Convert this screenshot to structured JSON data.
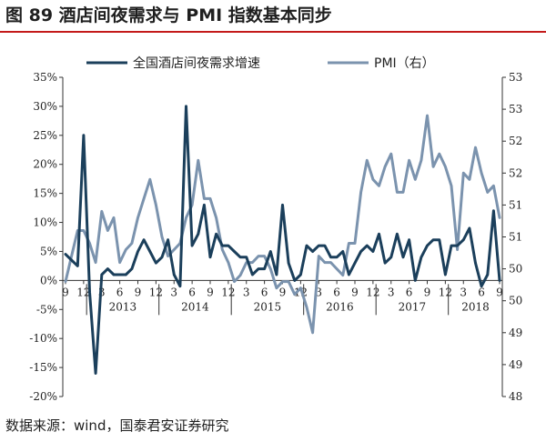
{
  "title": "图 89  酒店间夜需求与 PMI 指数基本同步",
  "source": "数据来源：wind，国泰君安证券研究",
  "chart_data": {
    "type": "line",
    "x": [
      "2012-09",
      "2012-10",
      "2012-11",
      "2012-12",
      "2013-01",
      "2013-02",
      "2013-03",
      "2013-04",
      "2013-05",
      "2013-06",
      "2013-07",
      "2013-08",
      "2013-09",
      "2013-10",
      "2013-11",
      "2013-12",
      "2014-01",
      "2014-02",
      "2014-03",
      "2014-04",
      "2014-05",
      "2014-06",
      "2014-07",
      "2014-08",
      "2014-09",
      "2014-10",
      "2014-11",
      "2014-12",
      "2015-01",
      "2015-02",
      "2015-03",
      "2015-04",
      "2015-05",
      "2015-06",
      "2015-07",
      "2015-08",
      "2015-09",
      "2015-10",
      "2015-11",
      "2015-12",
      "2016-01",
      "2016-02",
      "2016-03",
      "2016-04",
      "2016-05",
      "2016-06",
      "2016-07",
      "2016-08",
      "2016-09",
      "2016-10",
      "2016-11",
      "2016-12",
      "2017-01",
      "2017-02",
      "2017-03",
      "2017-04",
      "2017-05",
      "2017-06",
      "2017-07",
      "2017-08",
      "2017-09",
      "2017-10",
      "2017-11",
      "2017-12",
      "2018-01",
      "2018-02",
      "2018-03",
      "2018-04",
      "2018-05",
      "2018-06",
      "2018-07",
      "2018-08",
      "2018-09"
    ],
    "x_tick_labels": [
      "9",
      "12",
      "3",
      "6",
      "9",
      "12",
      "3",
      "6",
      "9",
      "12",
      "3",
      "6",
      "9",
      "12",
      "3",
      "6",
      "9",
      "12",
      "3",
      "6",
      "9",
      "12",
      "3",
      "6",
      "9"
    ],
    "year_labels": [
      "2013",
      "2014",
      "2015",
      "2016",
      "2017",
      "2018"
    ],
    "series": [
      {
        "name": "全国酒店间夜需求增速",
        "axis": "left",
        "color": "#1b3f5b",
        "values": [
          4.5,
          3.5,
          2.5,
          25,
          -2,
          -16,
          1,
          2,
          1,
          1,
          1,
          2,
          5,
          7,
          5,
          3,
          4,
          7,
          1,
          -1,
          30,
          6,
          8,
          13,
          4,
          8,
          6,
          6,
          5,
          4,
          4,
          1,
          2,
          2,
          5,
          1,
          13,
          3,
          0,
          1,
          6,
          5,
          6,
          6,
          4,
          4,
          5,
          1,
          3,
          5,
          6,
          5,
          8,
          3,
          4,
          8,
          4,
          7,
          0,
          4,
          6,
          7,
          7,
          1,
          6,
          6,
          7,
          9,
          3,
          -1,
          1,
          12,
          0
        ]
      },
      {
        "name": "PMI（右）",
        "axis": "right",
        "color": "#7b93ae",
        "values": [
          49.8,
          50.2,
          50.6,
          50.6,
          50.4,
          50.1,
          50.9,
          50.6,
          50.8,
          50.1,
          50.3,
          50.4,
          50.8,
          51.1,
          51.4,
          51.0,
          50.5,
          50.2,
          50.3,
          50.4,
          50.8,
          51.0,
          51.7,
          51.1,
          51.1,
          50.8,
          50.3,
          50.1,
          49.8,
          49.9,
          50.1,
          50.1,
          50.2,
          50.2,
          50.0,
          49.7,
          49.8,
          49.8,
          49.6,
          49.7,
          49.4,
          49.0,
          50.2,
          50.1,
          50.1,
          50.0,
          49.9,
          50.4,
          50.4,
          51.2,
          51.7,
          51.4,
          51.3,
          51.6,
          51.8,
          51.2,
          51.2,
          51.7,
          51.4,
          51.7,
          52.4,
          51.6,
          51.8,
          51.6,
          51.3,
          50.3,
          51.5,
          51.4,
          51.9,
          51.5,
          51.2,
          51.3,
          50.8
        ]
      }
    ],
    "y_left": {
      "min": -20,
      "max": 35,
      "ticks": [
        -20,
        -15,
        -10,
        -5,
        0,
        5,
        10,
        15,
        20,
        25,
        30,
        35
      ],
      "tick_labels": [
        "-20%",
        "-15%",
        "-10%",
        "-5%",
        "0%",
        "5%",
        "10%",
        "15%",
        "20%",
        "25%",
        "30%",
        "35%"
      ]
    },
    "y_right": {
      "min": 48,
      "max": 53,
      "ticks": [
        48,
        48.5,
        49,
        49.5,
        50,
        50.5,
        51,
        51.5,
        52,
        52.5,
        53
      ],
      "tick_labels": [
        "48",
        "49",
        "49",
        "50",
        "50",
        "51",
        "51",
        "52",
        "52",
        "53",
        "53"
      ]
    },
    "legend_position": "top",
    "grid": false
  }
}
